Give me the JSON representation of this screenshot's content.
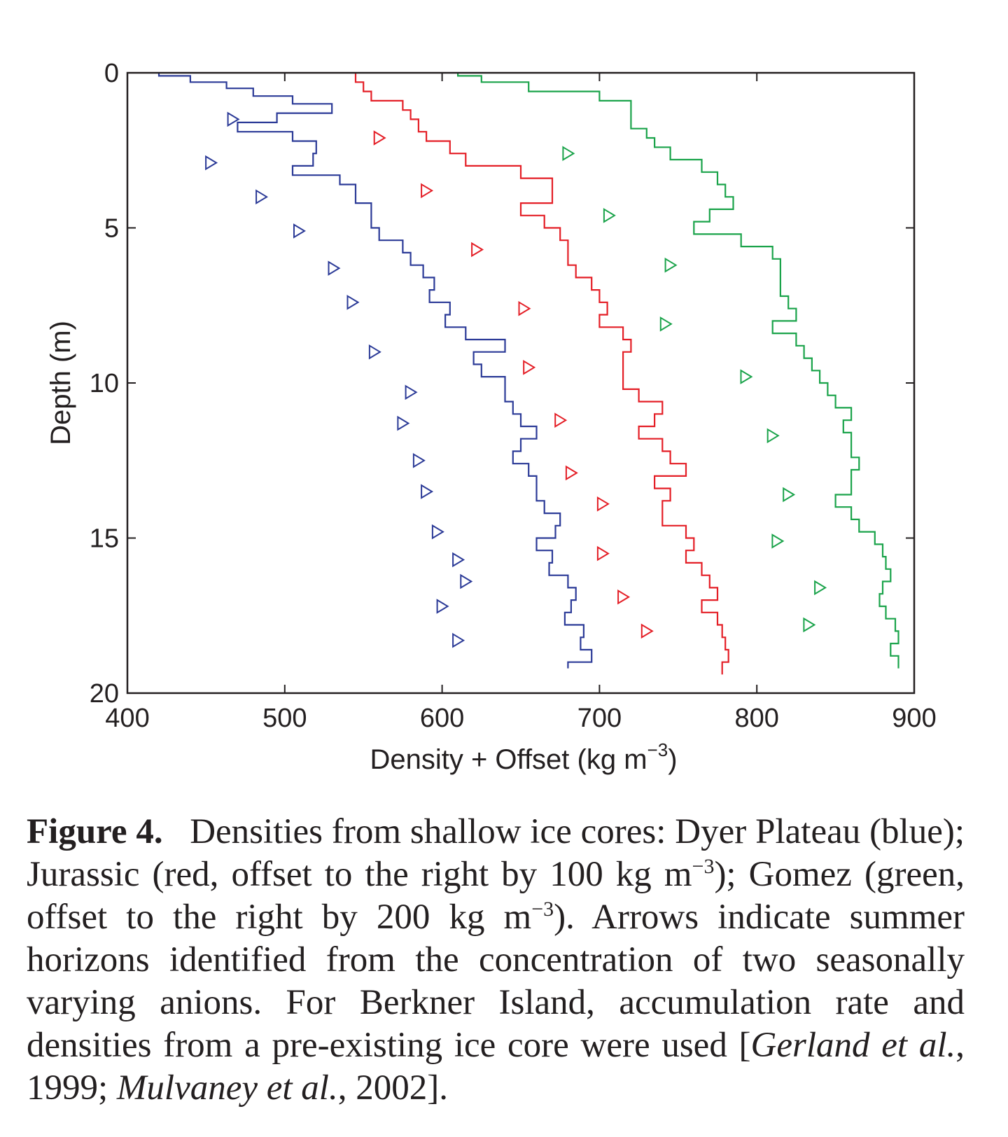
{
  "chart_data": {
    "type": "line",
    "xlabel_main": "Density + Offset (kg m",
    "xlabel_sup": "−3",
    "xlabel_end": ")",
    "ylabel": "Depth (m)",
    "xlim": [
      400,
      900
    ],
    "ylim": [
      0,
      20
    ],
    "y_inverted": true,
    "xticks": [
      "400",
      "500",
      "600",
      "700",
      "800",
      "900"
    ],
    "yticks": [
      "0",
      "5",
      "10",
      "15",
      "20"
    ],
    "series": [
      {
        "color": "#2b3a97",
        "step_profile": [
          [
            0,
            420
          ],
          [
            0.1,
            440
          ],
          [
            0.3,
            463
          ],
          [
            0.5,
            480
          ],
          [
            0.75,
            505
          ],
          [
            1.0,
            530
          ],
          [
            1.3,
            495
          ],
          [
            1.6,
            470
          ],
          [
            1.9,
            505
          ],
          [
            2.2,
            520
          ],
          [
            2.6,
            518
          ],
          [
            3.0,
            505
          ],
          [
            3.3,
            535
          ],
          [
            3.6,
            545
          ],
          [
            3.9,
            545
          ],
          [
            4.2,
            555
          ],
          [
            4.6,
            555
          ],
          [
            5.0,
            560
          ],
          [
            5.4,
            575
          ],
          [
            5.8,
            580
          ],
          [
            6.2,
            588
          ],
          [
            6.6,
            595
          ],
          [
            7.0,
            592
          ],
          [
            7.4,
            605
          ],
          [
            7.8,
            602
          ],
          [
            8.2,
            615
          ],
          [
            8.6,
            640
          ],
          [
            9.0,
            620
          ],
          [
            9.4,
            625
          ],
          [
            9.8,
            640
          ],
          [
            10.2,
            640
          ],
          [
            10.6,
            645
          ],
          [
            11.0,
            650
          ],
          [
            11.4,
            660
          ],
          [
            11.8,
            650
          ],
          [
            12.2,
            645
          ],
          [
            12.6,
            655
          ],
          [
            13.0,
            660
          ],
          [
            13.4,
            660
          ],
          [
            13.8,
            665
          ],
          [
            14.2,
            675
          ],
          [
            14.6,
            672
          ],
          [
            15.0,
            660
          ],
          [
            15.4,
            670
          ],
          [
            15.8,
            668
          ],
          [
            16.2,
            680
          ],
          [
            16.6,
            685
          ],
          [
            17.0,
            682
          ],
          [
            17.4,
            678
          ],
          [
            17.8,
            690
          ],
          [
            18.2,
            688
          ],
          [
            18.6,
            695
          ],
          [
            19.0,
            680
          ],
          [
            19.2,
            680
          ]
        ],
        "markers": [
          [
            1.5,
            467
          ],
          [
            2.9,
            453
          ],
          [
            4.0,
            485
          ],
          [
            5.1,
            509
          ],
          [
            6.3,
            531
          ],
          [
            7.4,
            543
          ],
          [
            9.0,
            557
          ],
          [
            10.3,
            580
          ],
          [
            11.3,
            575
          ],
          [
            12.5,
            585
          ],
          [
            13.5,
            590
          ],
          [
            14.8,
            597
          ],
          [
            15.7,
            610
          ],
          [
            16.4,
            615
          ],
          [
            17.2,
            600
          ],
          [
            18.3,
            610
          ]
        ]
      },
      {
        "color": "#e41e26",
        "step_profile": [
          [
            0,
            545
          ],
          [
            0.3,
            550
          ],
          [
            0.6,
            555
          ],
          [
            0.9,
            575
          ],
          [
            1.2,
            580
          ],
          [
            1.5,
            585
          ],
          [
            1.9,
            590
          ],
          [
            2.2,
            605
          ],
          [
            2.6,
            615
          ],
          [
            3.0,
            650
          ],
          [
            3.4,
            670
          ],
          [
            3.8,
            670
          ],
          [
            4.2,
            650
          ],
          [
            4.6,
            665
          ],
          [
            5.0,
            675
          ],
          [
            5.4,
            680
          ],
          [
            5.8,
            680
          ],
          [
            6.2,
            685
          ],
          [
            6.6,
            695
          ],
          [
            7.0,
            700
          ],
          [
            7.4,
            705
          ],
          [
            7.8,
            700
          ],
          [
            8.2,
            715
          ],
          [
            8.6,
            720
          ],
          [
            9.0,
            715
          ],
          [
            9.4,
            715
          ],
          [
            9.8,
            715
          ],
          [
            10.2,
            725
          ],
          [
            10.6,
            740
          ],
          [
            11.0,
            735
          ],
          [
            11.4,
            725
          ],
          [
            11.8,
            740
          ],
          [
            12.2,
            745
          ],
          [
            12.6,
            755
          ],
          [
            13.0,
            735
          ],
          [
            13.4,
            745
          ],
          [
            13.8,
            740
          ],
          [
            14.2,
            740
          ],
          [
            14.6,
            755
          ],
          [
            15.0,
            760
          ],
          [
            15.4,
            755
          ],
          [
            15.8,
            765
          ],
          [
            16.2,
            770
          ],
          [
            16.6,
            775
          ],
          [
            17.0,
            765
          ],
          [
            17.4,
            775
          ],
          [
            17.8,
            778
          ],
          [
            18.2,
            780
          ],
          [
            18.6,
            782
          ],
          [
            19.0,
            778
          ],
          [
            19.4,
            778
          ]
        ],
        "markers": [
          [
            2.1,
            560
          ],
          [
            3.8,
            590
          ],
          [
            5.7,
            622
          ],
          [
            7.6,
            652
          ],
          [
            9.5,
            655
          ],
          [
            11.2,
            675
          ],
          [
            12.9,
            682
          ],
          [
            13.9,
            702
          ],
          [
            15.5,
            702
          ],
          [
            16.9,
            715
          ],
          [
            18.0,
            730
          ]
        ]
      },
      {
        "color": "#1aa34a",
        "step_profile": [
          [
            0,
            610
          ],
          [
            0.1,
            625
          ],
          [
            0.3,
            655
          ],
          [
            0.6,
            700
          ],
          [
            0.9,
            720
          ],
          [
            1.2,
            720
          ],
          [
            1.5,
            720
          ],
          [
            1.8,
            730
          ],
          [
            2.1,
            735
          ],
          [
            2.4,
            745
          ],
          [
            2.8,
            765
          ],
          [
            3.2,
            775
          ],
          [
            3.6,
            780
          ],
          [
            4.0,
            785
          ],
          [
            4.4,
            770
          ],
          [
            4.8,
            760
          ],
          [
            5.2,
            790
          ],
          [
            5.6,
            810
          ],
          [
            6.0,
            815
          ],
          [
            6.4,
            815
          ],
          [
            6.8,
            815
          ],
          [
            7.2,
            820
          ],
          [
            7.6,
            825
          ],
          [
            8.0,
            810
          ],
          [
            8.4,
            825
          ],
          [
            8.8,
            830
          ],
          [
            9.2,
            835
          ],
          [
            9.6,
            840
          ],
          [
            10.0,
            845
          ],
          [
            10.4,
            850
          ],
          [
            10.8,
            860
          ],
          [
            11.2,
            855
          ],
          [
            11.6,
            860
          ],
          [
            12.0,
            860
          ],
          [
            12.4,
            865
          ],
          [
            12.8,
            860
          ],
          [
            13.2,
            860
          ],
          [
            13.6,
            850
          ],
          [
            14.0,
            860
          ],
          [
            14.4,
            865
          ],
          [
            14.8,
            875
          ],
          [
            15.2,
            880
          ],
          [
            15.6,
            882
          ],
          [
            16.0,
            885
          ],
          [
            16.4,
            880
          ],
          [
            16.8,
            878
          ],
          [
            17.2,
            882
          ],
          [
            17.6,
            888
          ],
          [
            18.0,
            890
          ],
          [
            18.4,
            885
          ],
          [
            18.8,
            890
          ],
          [
            19.2,
            895
          ]
        ],
        "markers": [
          [
            2.6,
            680
          ],
          [
            4.6,
            706
          ],
          [
            6.2,
            745
          ],
          [
            8.1,
            742
          ],
          [
            9.8,
            793
          ],
          [
            11.7,
            810
          ],
          [
            13.6,
            820
          ],
          [
            15.1,
            813
          ],
          [
            16.6,
            840
          ],
          [
            17.8,
            833
          ]
        ]
      }
    ]
  },
  "caption": {
    "label": "Figure 4.",
    "t1": "Densities from shallow ice cores: Dyer Plateau (blue); Jurassic (red, offset to the right by 100 kg m",
    "sup1": "−3",
    "t2": "); Gomez (green, offset to the right by 200 kg m",
    "sup2": "−3",
    "t3": "). Arrows indicate summer horizons identified from the concentration of two seasonally varying anions. For Berkner Island, accumulation rate and densities from a pre-existing ice core were used [",
    "ref1": "Gerland et al.",
    "t4": ", 1999; ",
    "ref2": "Mulvaney et al.",
    "t5": ", 2002]."
  }
}
